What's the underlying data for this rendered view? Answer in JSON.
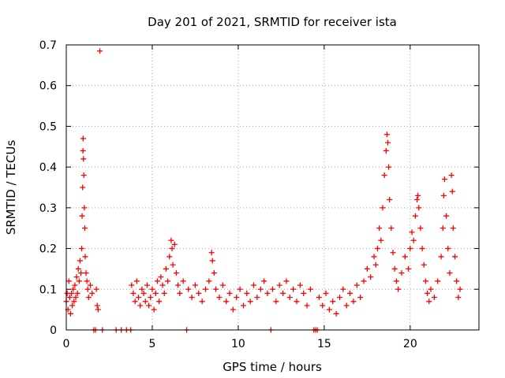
{
  "chart_data": {
    "type": "scatter",
    "title": "Day 201 of 2021, SRMTID for receiver ista",
    "xlabel": "GPS time / hours",
    "ylabel": "SRMTID / TECUs",
    "xlim": [
      0,
      24
    ],
    "ylim": [
      0,
      0.7
    ],
    "x_ticks": [
      0,
      5,
      10,
      15,
      20
    ],
    "x_tick_labels": [
      "0",
      "5",
      "10",
      "15",
      "20"
    ],
    "y_ticks": [
      0,
      0.1,
      0.2,
      0.3,
      0.4,
      0.5,
      0.6,
      0.7
    ],
    "y_tick_labels": [
      "0",
      "0.1",
      "0.2",
      "0.3",
      "0.4",
      "0.5",
      "0.6",
      "0.7"
    ],
    "grid": true,
    "legend": "none",
    "marker": "+",
    "colors": {
      "marker": "#ff0000",
      "grid": "#a0a0a0",
      "axes": "#000000"
    },
    "series": [
      {
        "name": "SRMTID",
        "points": [
          [
            0.0,
            0.07
          ],
          [
            0.05,
            0.09
          ],
          [
            0.1,
            0.05
          ],
          [
            0.15,
            0.12
          ],
          [
            0.2,
            0.08
          ],
          [
            0.25,
            0.04
          ],
          [
            0.3,
            0.09
          ],
          [
            0.35,
            0.06
          ],
          [
            0.4,
            0.1
          ],
          [
            0.45,
            0.07
          ],
          [
            0.5,
            0.11
          ],
          [
            0.55,
            0.08
          ],
          [
            0.6,
            0.13
          ],
          [
            0.65,
            0.09
          ],
          [
            0.7,
            0.15
          ],
          [
            0.75,
            0.12
          ],
          [
            0.8,
            0.17
          ],
          [
            0.85,
            0.14
          ],
          [
            0.9,
            0.2
          ],
          [
            0.92,
            0.28
          ],
          [
            0.95,
            0.35
          ],
          [
            0.97,
            0.44
          ],
          [
            0.98,
            0.47
          ],
          [
            1.0,
            0.42
          ],
          [
            1.02,
            0.38
          ],
          [
            1.05,
            0.3
          ],
          [
            1.08,
            0.25
          ],
          [
            1.1,
            0.18
          ],
          [
            1.15,
            0.14
          ],
          [
            1.2,
            0.12
          ],
          [
            1.25,
            0.1
          ],
          [
            1.3,
            0.08
          ],
          [
            1.4,
            0.11
          ],
          [
            1.5,
            0.09
          ],
          [
            1.6,
            0.0
          ],
          [
            1.7,
            0.0
          ],
          [
            1.75,
            0.1
          ],
          [
            1.8,
            0.06
          ],
          [
            1.85,
            0.05
          ],
          [
            1.95,
            0.685
          ],
          [
            2.1,
            0.0
          ],
          [
            2.9,
            0.0
          ],
          [
            3.2,
            0.0
          ],
          [
            3.5,
            0.0
          ],
          [
            3.75,
            0.0
          ],
          [
            3.8,
            0.11
          ],
          [
            3.9,
            0.09
          ],
          [
            4.0,
            0.07
          ],
          [
            4.1,
            0.12
          ],
          [
            4.2,
            0.08
          ],
          [
            4.3,
            0.06
          ],
          [
            4.4,
            0.1
          ],
          [
            4.5,
            0.09
          ],
          [
            4.6,
            0.07
          ],
          [
            4.7,
            0.11
          ],
          [
            4.8,
            0.06
          ],
          [
            4.9,
            0.08
          ],
          [
            5.0,
            0.1
          ],
          [
            5.1,
            0.05
          ],
          [
            5.2,
            0.09
          ],
          [
            5.3,
            0.12
          ],
          [
            5.4,
            0.07
          ],
          [
            5.5,
            0.13
          ],
          [
            5.6,
            0.11
          ],
          [
            5.7,
            0.09
          ],
          [
            5.8,
            0.15
          ],
          [
            5.9,
            0.12
          ],
          [
            6.0,
            0.18
          ],
          [
            6.1,
            0.22
          ],
          [
            6.15,
            0.2
          ],
          [
            6.2,
            0.16
          ],
          [
            6.3,
            0.21
          ],
          [
            6.4,
            0.14
          ],
          [
            6.5,
            0.11
          ],
          [
            6.6,
            0.09
          ],
          [
            6.8,
            0.12
          ],
          [
            7.0,
            0.0
          ],
          [
            7.1,
            0.1
          ],
          [
            7.3,
            0.08
          ],
          [
            7.5,
            0.11
          ],
          [
            7.7,
            0.09
          ],
          [
            7.9,
            0.07
          ],
          [
            8.1,
            0.1
          ],
          [
            8.3,
            0.12
          ],
          [
            8.45,
            0.19
          ],
          [
            8.5,
            0.17
          ],
          [
            8.6,
            0.14
          ],
          [
            8.7,
            0.1
          ],
          [
            8.9,
            0.08
          ],
          [
            9.1,
            0.11
          ],
          [
            9.3,
            0.07
          ],
          [
            9.5,
            0.09
          ],
          [
            9.7,
            0.05
          ],
          [
            9.9,
            0.08
          ],
          [
            10.1,
            0.1
          ],
          [
            10.3,
            0.06
          ],
          [
            10.5,
            0.09
          ],
          [
            10.7,
            0.07
          ],
          [
            10.9,
            0.11
          ],
          [
            11.1,
            0.08
          ],
          [
            11.3,
            0.1
          ],
          [
            11.5,
            0.12
          ],
          [
            11.7,
            0.09
          ],
          [
            11.9,
            0.0
          ],
          [
            12.0,
            0.1
          ],
          [
            12.2,
            0.07
          ],
          [
            12.4,
            0.11
          ],
          [
            12.6,
            0.09
          ],
          [
            12.8,
            0.12
          ],
          [
            13.0,
            0.08
          ],
          [
            13.2,
            0.1
          ],
          [
            13.4,
            0.07
          ],
          [
            13.6,
            0.11
          ],
          [
            13.8,
            0.09
          ],
          [
            14.0,
            0.06
          ],
          [
            14.2,
            0.1
          ],
          [
            14.4,
            0.0
          ],
          [
            14.5,
            0.0
          ],
          [
            14.6,
            0.0
          ],
          [
            14.7,
            0.08
          ],
          [
            14.9,
            0.06
          ],
          [
            15.1,
            0.09
          ],
          [
            15.3,
            0.05
          ],
          [
            15.5,
            0.07
          ],
          [
            15.7,
            0.04
          ],
          [
            15.9,
            0.08
          ],
          [
            16.1,
            0.1
          ],
          [
            16.3,
            0.06
          ],
          [
            16.5,
            0.09
          ],
          [
            16.7,
            0.07
          ],
          [
            16.9,
            0.11
          ],
          [
            17.1,
            0.08
          ],
          [
            17.3,
            0.12
          ],
          [
            17.5,
            0.15
          ],
          [
            17.7,
            0.13
          ],
          [
            17.9,
            0.18
          ],
          [
            18.0,
            0.16
          ],
          [
            18.1,
            0.2
          ],
          [
            18.2,
            0.25
          ],
          [
            18.3,
            0.22
          ],
          [
            18.4,
            0.3
          ],
          [
            18.5,
            0.38
          ],
          [
            18.6,
            0.44
          ],
          [
            18.65,
            0.48
          ],
          [
            18.7,
            0.46
          ],
          [
            18.75,
            0.4
          ],
          [
            18.8,
            0.32
          ],
          [
            18.9,
            0.25
          ],
          [
            19.0,
            0.19
          ],
          [
            19.1,
            0.15
          ],
          [
            19.2,
            0.12
          ],
          [
            19.3,
            0.1
          ],
          [
            19.5,
            0.14
          ],
          [
            19.7,
            0.18
          ],
          [
            19.9,
            0.15
          ],
          [
            20.0,
            0.2
          ],
          [
            20.1,
            0.24
          ],
          [
            20.2,
            0.22
          ],
          [
            20.3,
            0.28
          ],
          [
            20.4,
            0.32
          ],
          [
            20.45,
            0.33
          ],
          [
            20.5,
            0.3
          ],
          [
            20.6,
            0.25
          ],
          [
            20.7,
            0.2
          ],
          [
            20.8,
            0.16
          ],
          [
            20.9,
            0.12
          ],
          [
            21.0,
            0.09
          ],
          [
            21.1,
            0.07
          ],
          [
            21.2,
            0.1
          ],
          [
            21.4,
            0.08
          ],
          [
            21.6,
            0.12
          ],
          [
            21.8,
            0.18
          ],
          [
            21.9,
            0.25
          ],
          [
            21.95,
            0.33
          ],
          [
            22.0,
            0.37
          ],
          [
            22.1,
            0.28
          ],
          [
            22.2,
            0.2
          ],
          [
            22.3,
            0.14
          ],
          [
            22.4,
            0.38
          ],
          [
            22.45,
            0.34
          ],
          [
            22.5,
            0.25
          ],
          [
            22.6,
            0.18
          ],
          [
            22.7,
            0.12
          ],
          [
            22.8,
            0.08
          ],
          [
            22.9,
            0.1
          ]
        ]
      }
    ]
  }
}
